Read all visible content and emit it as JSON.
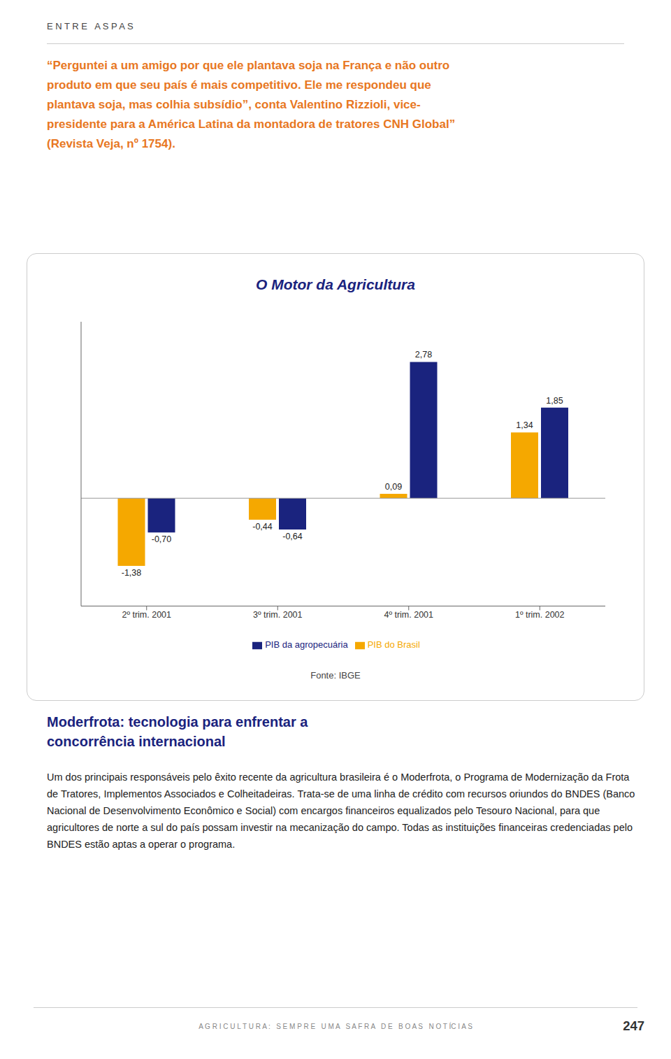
{
  "chart_data": {
    "type": "bar",
    "title": "O Motor da Agricultura",
    "title_color": "#1a237e",
    "categories": [
      "2º trim. 2001",
      "3º trim. 2001",
      "4º trim. 2001",
      "1º trim. 2002"
    ],
    "series": [
      {
        "name": "PIB do Brasil",
        "color": "#f5a800",
        "values": [
          -1.38,
          -0.44,
          0.09,
          1.34
        ],
        "value_labels": [
          "-1,38",
          "-0,44",
          "0,09",
          "1,34"
        ]
      },
      {
        "name": "PIB da agropecuária",
        "color": "#1a237e",
        "values": [
          -0.7,
          -0.64,
          2.78,
          1.85
        ],
        "value_labels": [
          "-0,70",
          "-0,64",
          "2,78",
          "1,85"
        ]
      }
    ],
    "ylim": [
      -2.2,
      3.6
    ],
    "grid": false,
    "legend": "bottom",
    "data_labels": true,
    "tick_labels": "x",
    "annotations": [
      "E N T R E   A S P A S",
      "“Perguntei a um amigo por que ele plantava soja na França e não outro\nproduto em que seu país é mais competitivo. Ele me respondeu que\nplantava soja, mas colhia subsídio”, conta Valentino Rizzioli, vice-\npresidente para a América Latina da montadora de tratores CNH Global”\n(Revista Veja, nº 1754).",
      "Fonte: IBGE",
      "Moderfrota: tecnologia para enfrentar a\nconcorrência internacional",
      "Um dos principais responsáveis pelo êxito recente da agricultura brasileira é o Moderfrota, o Programa de Modernização da Frota de Tratores, Implementos Associados e Colheitadeiras. Trata-se de uma linha de crédito com recursos oriundos do BNDES (Banco Nacional de Desenvolvimento Econômico e Social) com encargos financeiros equalizados pelo Tesouro Nacional, para que agricultores de norte a sul do país possam investir na mecanização do campo. Todas as instituições financeiras credenciadas pelo BNDES estão aptas a operar o programa.",
      "A G R I C U L T U R A :   S E M P R E   U M A   S A F R A   D E   B O A S   N O T ÍC I A S",
      "247"
    ],
    "annotation_colors": [
      "#444444",
      "#e87722",
      "#444444",
      "#1a237e",
      "#222222",
      "#888888",
      "#333333"
    ]
  }
}
